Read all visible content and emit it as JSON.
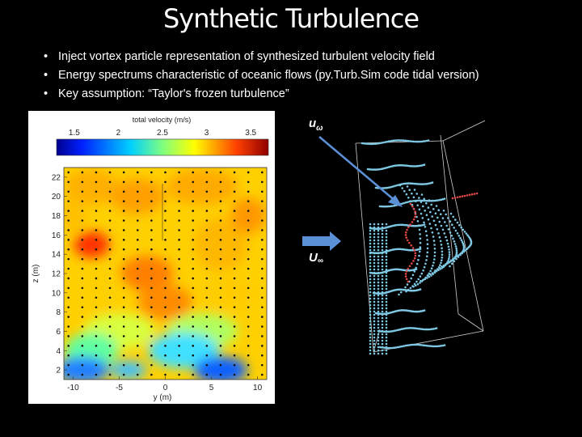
{
  "slide": {
    "title": "Synthetic Turbulence",
    "bullets": [
      "Inject vortex particle representation of synthesized turbulent velocity field",
      "Energy spectrums characteristic of oceanic flows (py.Turb.Sim code tidal version)",
      "Key assumption: “Taylor's frozen turbulence”"
    ],
    "bullet_glyph": "•"
  },
  "chart_data": {
    "type": "heatmap",
    "colorbar": {
      "title": "total velocity (m/s)",
      "ticks": [
        "1.5",
        "2",
        "2.5",
        "3",
        "3.5"
      ],
      "range": [
        1.3,
        3.7
      ],
      "colormap": "jet"
    },
    "xlabel": "y (m)",
    "ylabel": "z (m)",
    "xticks": [
      "-10",
      "-5",
      "0",
      "5",
      "10"
    ],
    "yticks": [
      "2",
      "4",
      "6",
      "8",
      "10",
      "12",
      "14",
      "16",
      "18",
      "20",
      "22"
    ],
    "xlim": [
      -11,
      11
    ],
    "ylim": [
      1,
      23
    ],
    "grid_markers": "black dots",
    "field_summary": "mostly 2.8–3.3 m/s (yellow/orange) with slower blue patches near z≈2–4 and a faster red patch near y≈-8, z≈15"
  },
  "vortex_figure": {
    "labels": {
      "u_omega_base": "u",
      "u_omega_sub": "ω",
      "u_inf_base": "U",
      "u_inf_sub": "∞"
    },
    "colors": {
      "particles": "#7ec8e3",
      "accent": "#e04848",
      "arrow": "#5b8fd6",
      "box": "#cfcfcf"
    }
  }
}
